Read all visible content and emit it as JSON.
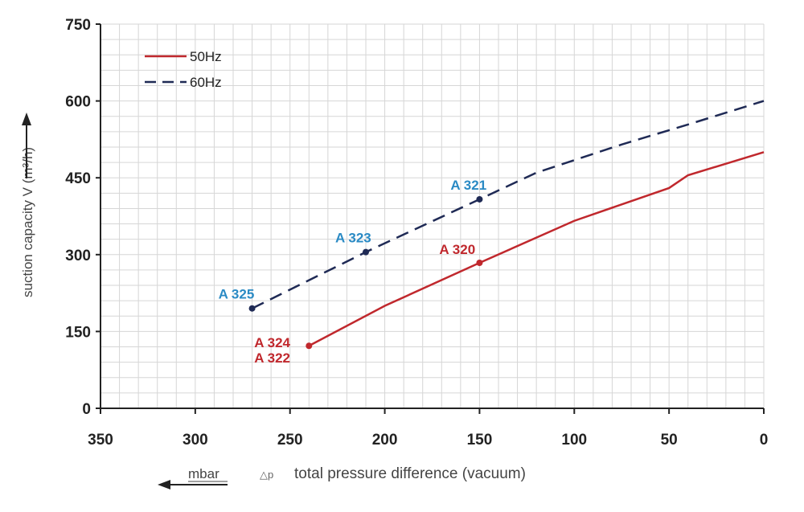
{
  "chart_data": {
    "type": "line",
    "xlabel_unit": "mbar",
    "xlabel_symbol": "△p",
    "xlabel": "total pressure difference (vacuum)",
    "ylabel": "suction capacity V (m³/h)",
    "xlim": [
      350,
      0
    ],
    "ylim": [
      0,
      750
    ],
    "xticks": [
      350,
      300,
      250,
      200,
      150,
      100,
      50,
      0
    ],
    "yticks": [
      0,
      150,
      300,
      450,
      600,
      750
    ],
    "grid": true,
    "legend_placement": "top-left",
    "series": [
      {
        "name": "50Hz",
        "color": "#c0282d",
        "dash": false,
        "x": [
          240,
          200,
          150,
          100,
          50,
          40,
          0
        ],
        "y": [
          122,
          200,
          284,
          366,
          430,
          455,
          500
        ]
      },
      {
        "name": "60Hz",
        "color": "#1f2a55",
        "dash": true,
        "x": [
          270,
          210,
          150,
          120,
          75,
          40,
          0
        ],
        "y": [
          195,
          305,
          408,
          460,
          515,
          554,
          600
        ]
      }
    ],
    "annotations": [
      {
        "text": "A 325",
        "x": 270,
        "y": 195,
        "color": "#2a8ac4",
        "series": "60Hz"
      },
      {
        "text": "A 323",
        "x": 210,
        "y": 305,
        "color": "#2a8ac4",
        "series": "60Hz"
      },
      {
        "text": "A 321",
        "x": 150,
        "y": 408,
        "color": "#2a8ac4",
        "series": "60Hz"
      },
      {
        "text": "A 320",
        "x": 150,
        "y": 284,
        "color": "#c0282d",
        "series": "50Hz"
      },
      {
        "text": "A 324",
        "x": 240,
        "y": 122,
        "color": "#c0282d",
        "series": "50Hz"
      },
      {
        "text": "A 322",
        "x": 240,
        "y": 122,
        "color": "#c0282d",
        "series": "50Hz"
      }
    ]
  }
}
